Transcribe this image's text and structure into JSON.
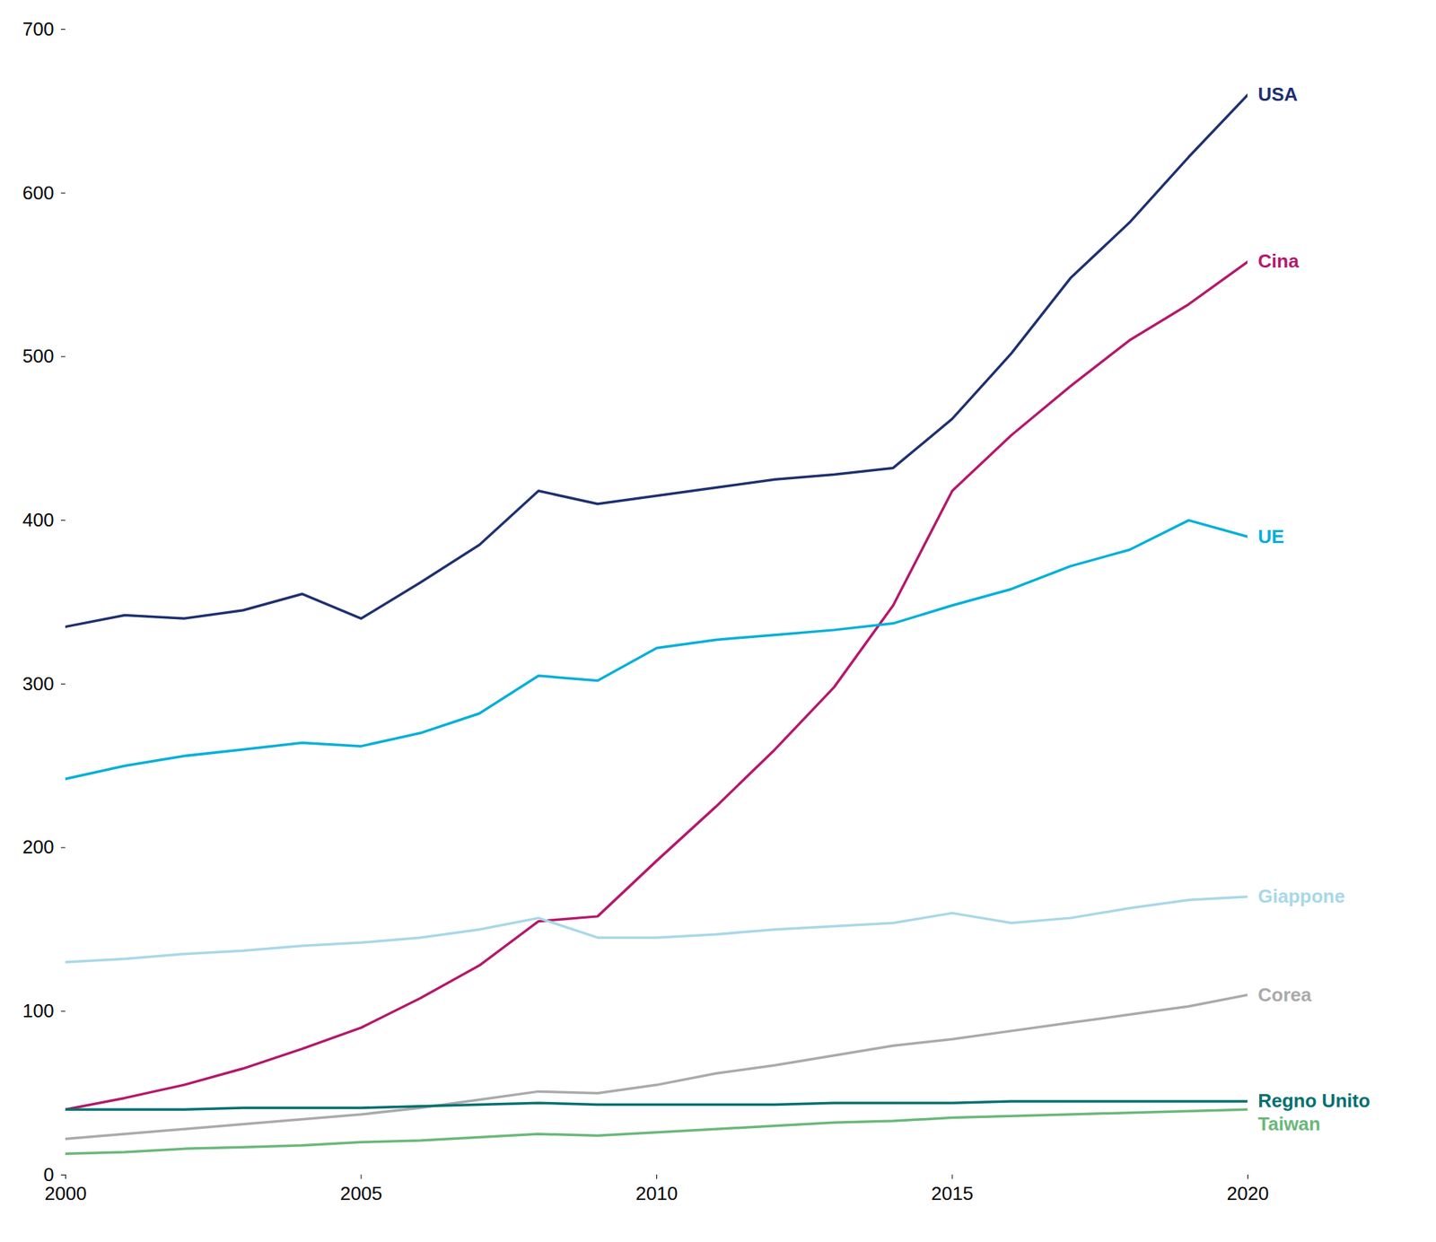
{
  "chart_data": {
    "type": "line",
    "x": [
      2000,
      2001,
      2002,
      2003,
      2004,
      2005,
      2006,
      2007,
      2008,
      2009,
      2010,
      2011,
      2012,
      2013,
      2014,
      2015,
      2016,
      2017,
      2018,
      2019,
      2020
    ],
    "series": [
      {
        "name": "USA",
        "color": "#1e3070",
        "values": [
          335,
          342,
          340,
          345,
          355,
          340,
          362,
          385,
          418,
          410,
          415,
          420,
          425,
          428,
          432,
          462,
          502,
          548,
          582,
          622,
          660
        ]
      },
      {
        "name": "Cina",
        "color": "#b5186a",
        "values": [
          40,
          47,
          55,
          65,
          77,
          90,
          108,
          128,
          155,
          158,
          192,
          225,
          260,
          298,
          348,
          418,
          452,
          482,
          510,
          532,
          558
        ]
      },
      {
        "name": "UE",
        "color": "#00b0d8",
        "values": [
          242,
          250,
          256,
          260,
          264,
          262,
          270,
          282,
          305,
          302,
          322,
          327,
          330,
          333,
          337,
          348,
          358,
          372,
          382,
          400,
          390
        ]
      },
      {
        "name": "Giappone",
        "color": "#a8d8e8",
        "values": [
          130,
          132,
          135,
          137,
          140,
          142,
          145,
          150,
          157,
          145,
          145,
          147,
          150,
          152,
          154,
          160,
          154,
          157,
          163,
          168,
          170
        ]
      },
      {
        "name": "Corea",
        "color": "#aaaaaa",
        "values": [
          22,
          25,
          28,
          31,
          34,
          37,
          41,
          46,
          51,
          50,
          55,
          62,
          67,
          73,
          79,
          83,
          88,
          93,
          98,
          103,
          110
        ]
      },
      {
        "name": "Regno Unito",
        "color": "#007070",
        "values": [
          40,
          40,
          40,
          41,
          41,
          41,
          42,
          43,
          44,
          43,
          43,
          43,
          43,
          44,
          44,
          44,
          45,
          45,
          45,
          45,
          45
        ]
      },
      {
        "name": "Taiwan",
        "color": "#6ab87a",
        "values": [
          13,
          14,
          16,
          17,
          18,
          20,
          21,
          23,
          25,
          24,
          26,
          28,
          30,
          32,
          33,
          35,
          36,
          37,
          38,
          39,
          40
        ]
      }
    ],
    "xlim": [
      2000,
      2020
    ],
    "ylim": [
      0,
      700
    ],
    "xticks": [
      2000,
      2005,
      2010,
      2015,
      2020
    ],
    "yticks": [
      0,
      100,
      200,
      300,
      400,
      500,
      600,
      700
    ],
    "grid": false
  }
}
